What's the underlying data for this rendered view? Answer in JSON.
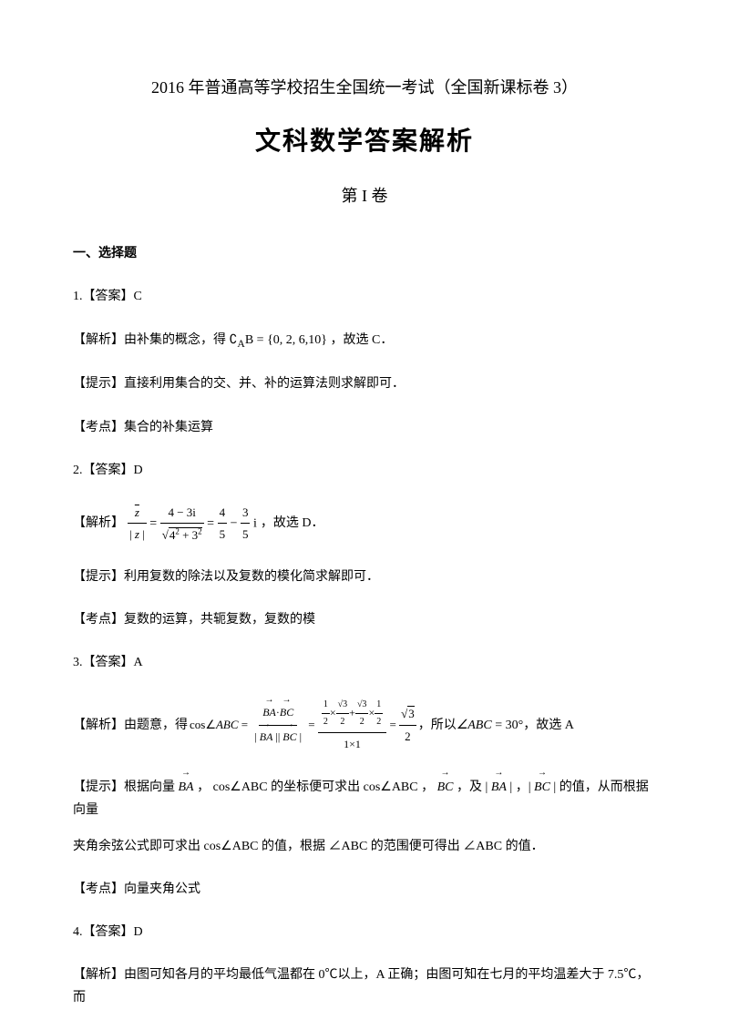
{
  "header": {
    "examTitle": "2016 年普通高等学校招生全国统一考试（全国新课标卷 3）",
    "mainTitle": "文科数学答案解析",
    "volumeTitle": "第 I 卷"
  },
  "section": {
    "title": "一、选择题"
  },
  "q1": {
    "answer": "1.【答案】C",
    "analysis_prefix": "【解析】由补集的概念，得 ",
    "formula": "∁_A B = {0, 2, 6, 10}",
    "analysis_suffix": " ，故选 C．",
    "hint": "【提示】直接利用集合的交、并、补的运算法则求解即可．",
    "point": "【考点】集合的补集运算"
  },
  "q2": {
    "answer": "2.【答案】D",
    "analysis_prefix": "【解析】",
    "analysis_suffix": "，故选 D．",
    "hint": "【提示】利用复数的除法以及复数的模化简求解即可．",
    "point": "【考点】复数的运算，共轭复数，复数的模"
  },
  "q3": {
    "answer": "3.【答案】A",
    "analysis_prefix": "【解析】由题意，得 ",
    "analysis_mid": "，所以 ",
    "angle": "∠ABC = 30°",
    "analysis_suffix": " ，故选 A",
    "hint_p1": "【提示】根据向量 ",
    "hint_p2": "， cos∠ABC 的坐标便可求出 cos∠ABC ， ",
    "hint_p3": " ，及 | ",
    "hint_p4": " | ，| ",
    "hint_p5": " | 的值，从而根据向量",
    "hint_line2": "夹角余弦公式即可求出 cos∠ABC 的值，根据 ∠ABC 的范围便可得出 ∠ABC 的值．",
    "point": "【考点】向量夹角公式"
  },
  "q4": {
    "answer": "4.【答案】D",
    "analysis": "【解析】由图可知各月的平均最低气温都在 0℃以上，A 正确；由图可知在七月的平均温差大于 7.5℃，而"
  },
  "colors": {
    "text": "#000000",
    "background": "#ffffff"
  },
  "fonts": {
    "body_size": 14,
    "main_title_size": 28,
    "header_title_size": 18
  }
}
